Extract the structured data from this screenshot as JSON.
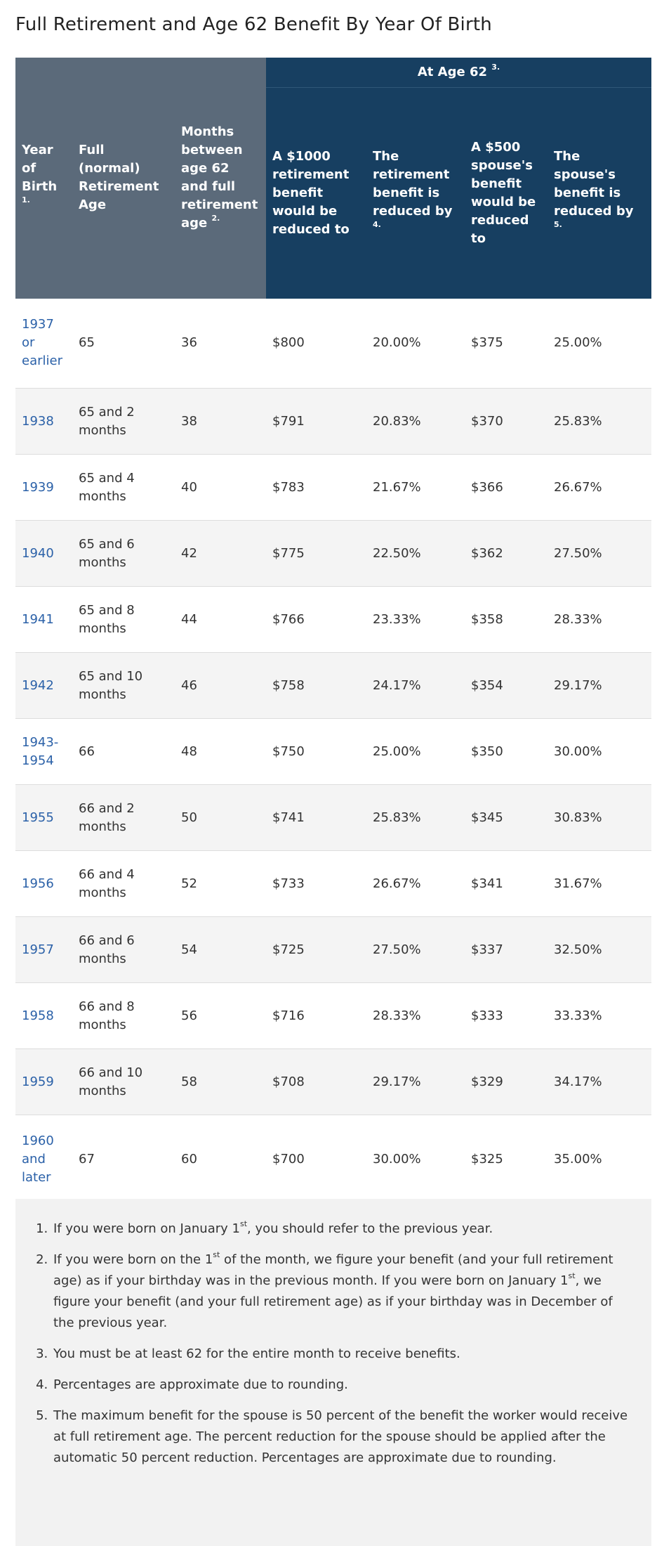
{
  "page": {
    "title": "Full Retirement and Age 62 Benefit By Year Of Birth"
  },
  "table": {
    "headers": {
      "year_of_birth": "Year of Birth",
      "year_of_birth_note": "1.",
      "full_retirement_age": "Full (normal) Retirement Age",
      "months_between": "Months between age 62 and full retirement age",
      "months_between_note": "2.",
      "at_age_62": "At Age 62",
      "at_age_62_note": "3.",
      "reduced_to": "A $1000 retirement benefit would be reduced to",
      "reduced_by": "The retirement benefit is reduced by",
      "reduced_by_note": "4.",
      "spouse_reduced_to": "A $500 spouse's benefit would be reduced to",
      "spouse_reduced_by": "The spouse's benefit is reduced by",
      "spouse_reduced_by_note": "5."
    },
    "rows": [
      {
        "year": "1937 or earlier",
        "fra": "65",
        "months": "36",
        "reduced_to": "$800",
        "reduced_by": "20.00%",
        "spouse_to": "$375",
        "spouse_by": "25.00%"
      },
      {
        "year": "1938",
        "fra": "65 and 2 months",
        "months": "38",
        "reduced_to": "$791",
        "reduced_by": "20.83%",
        "spouse_to": "$370",
        "spouse_by": "25.83%"
      },
      {
        "year": "1939",
        "fra": "65 and 4 months",
        "months": "40",
        "reduced_to": "$783",
        "reduced_by": "21.67%",
        "spouse_to": "$366",
        "spouse_by": "26.67%"
      },
      {
        "year": "1940",
        "fra": "65 and 6 months",
        "months": "42",
        "reduced_to": "$775",
        "reduced_by": "22.50%",
        "spouse_to": "$362",
        "spouse_by": "27.50%"
      },
      {
        "year": "1941",
        "fra": "65 and 8 months",
        "months": "44",
        "reduced_to": "$766",
        "reduced_by": "23.33%",
        "spouse_to": "$358",
        "spouse_by": "28.33%"
      },
      {
        "year": "1942",
        "fra": "65 and 10 months",
        "months": "46",
        "reduced_to": "$758",
        "reduced_by": "24.17%",
        "spouse_to": "$354",
        "spouse_by": "29.17%"
      },
      {
        "year": "1943-1954",
        "fra": "66",
        "months": "48",
        "reduced_to": "$750",
        "reduced_by": "25.00%",
        "spouse_to": "$350",
        "spouse_by": "30.00%"
      },
      {
        "year": "1955",
        "fra": "66 and 2 months",
        "months": "50",
        "reduced_to": "$741",
        "reduced_by": "25.83%",
        "spouse_to": "$345",
        "spouse_by": "30.83%"
      },
      {
        "year": "1956",
        "fra": "66 and 4 months",
        "months": "52",
        "reduced_to": "$733",
        "reduced_by": "26.67%",
        "spouse_to": "$341",
        "spouse_by": "31.67%"
      },
      {
        "year": "1957",
        "fra": "66 and 6 months",
        "months": "54",
        "reduced_to": "$725",
        "reduced_by": "27.50%",
        "spouse_to": "$337",
        "spouse_by": "32.50%"
      },
      {
        "year": "1958",
        "fra": "66 and 8 months",
        "months": "56",
        "reduced_to": "$716",
        "reduced_by": "28.33%",
        "spouse_to": "$333",
        "spouse_by": "33.33%"
      },
      {
        "year": "1959",
        "fra": "66 and 10 months",
        "months": "58",
        "reduced_to": "$708",
        "reduced_by": "29.17%",
        "spouse_to": "$329",
        "spouse_by": "34.17%"
      },
      {
        "year": "1960 and later",
        "fra": "67",
        "months": "60",
        "reduced_to": "$700",
        "reduced_by": "30.00%",
        "spouse_to": "$325",
        "spouse_by": "35.00%"
      }
    ]
  },
  "notes": [
    {
      "pre": "If you were born on January 1",
      "sup": "st",
      "post": ", you should refer to the previous year."
    },
    {
      "pre": "If you were born on the 1",
      "sup": "st",
      "mid": " of the month, we figure your benefit (and your full retirement age) as if your birthday was in the previous month. If you were born on January 1",
      "sup2": "st",
      "post": ", we figure your benefit (and your full retirement age) as if your birthday was in December of the previous year."
    },
    {
      "pre": "You must be at least 62 for the entire month to receive benefits."
    },
    {
      "pre": "Percentages are approximate due to rounding."
    },
    {
      "pre": "The maximum benefit for the spouse is 50 percent of the benefit the worker would receive at full retirement age. The percent reduction for the spouse should be applied after the automatic 50 percent reduction. Percentages are approximate due to rounding."
    }
  ],
  "colors": {
    "header_gray": "#5b6a7a",
    "header_blue": "#173f61",
    "link_blue": "#2b61a8",
    "notes_bg": "#f2f2f2"
  }
}
